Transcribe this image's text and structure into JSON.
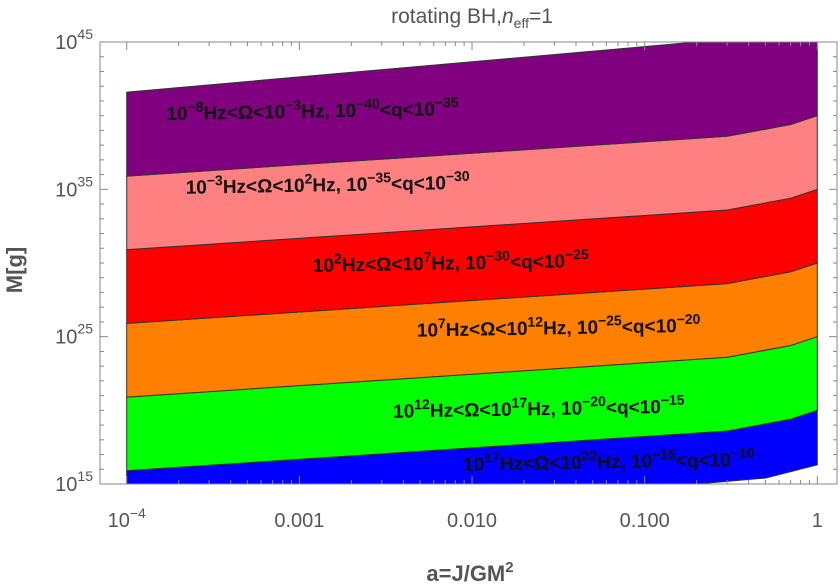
{
  "chart_data": {
    "type": "area",
    "title": {
      "main": "rotating BH,",
      "var": "n",
      "sub": "eff",
      "rest": "=1"
    },
    "xlabel": {
      "main": "a=J/GM",
      "sup": "2"
    },
    "ylabel": "M[g]",
    "x_scale": "log",
    "y_scale": "log",
    "xlim": [
      7e-05,
      1.3
    ],
    "ylim": [
      1000000000000000.0,
      1e+45
    ],
    "x_ticks": [
      {
        "value": 0.0001,
        "base": "10",
        "sup": "−4"
      },
      {
        "value": 0.001,
        "label": "0.001"
      },
      {
        "value": 0.01,
        "label": "0.010"
      },
      {
        "value": 0.1,
        "label": "0.100"
      },
      {
        "value": 1,
        "label": "1"
      }
    ],
    "y_ticks": [
      {
        "value": 1000000000000000.0,
        "base": "10",
        "sup": "15"
      },
      {
        "value": 1e+25,
        "base": "10",
        "sup": "25"
      },
      {
        "value": 1e+35,
        "base": "10",
        "sup": "35"
      },
      {
        "value": 1e+45,
        "base": "10",
        "sup": "45"
      }
    ],
    "series": [
      {
        "name": "10^17Hz<Ω<10^22Hz, 10^-15<q<10^-10",
        "color": "#0000ff",
        "lower_log10": [
          [
            0.0001,
            15.0
          ],
          [
            0.2,
            15.0
          ],
          [
            0.5,
            15.4
          ],
          [
            1.0,
            16.3
          ]
        ],
        "upper_log10": [
          [
            0.0001,
            15.9
          ],
          [
            0.3,
            18.6
          ],
          [
            0.7,
            19.4
          ],
          [
            1.0,
            20.0
          ]
        ]
      },
      {
        "name": "10^12Hz<Ω<10^17Hz, 10^-20<q<10^-15",
        "color": "#00ff00",
        "lower_log10": [
          [
            0.0001,
            15.9
          ],
          [
            0.3,
            18.6
          ],
          [
            0.7,
            19.4
          ],
          [
            1.0,
            20.0
          ]
        ],
        "upper_log10": [
          [
            0.0001,
            20.9
          ],
          [
            0.3,
            23.6
          ],
          [
            0.7,
            24.4
          ],
          [
            1.0,
            25.0
          ]
        ]
      },
      {
        "name": "10^7Hz<Ω<10^12Hz, 10^-25<q<10^-20",
        "color": "#ff7f00",
        "lower_log10": [
          [
            0.0001,
            20.9
          ],
          [
            0.3,
            23.6
          ],
          [
            0.7,
            24.4
          ],
          [
            1.0,
            25.0
          ]
        ],
        "upper_log10": [
          [
            0.0001,
            25.9
          ],
          [
            0.3,
            28.6
          ],
          [
            0.7,
            29.4
          ],
          [
            1.0,
            30.0
          ]
        ]
      },
      {
        "name": "10^2Hz<Ω<10^7Hz, 10^-30<q<10^-25",
        "color": "#ff0000",
        "lower_log10": [
          [
            0.0001,
            25.9
          ],
          [
            0.3,
            28.6
          ],
          [
            0.7,
            29.4
          ],
          [
            1.0,
            30.0
          ]
        ],
        "upper_log10": [
          [
            0.0001,
            30.9
          ],
          [
            0.3,
            33.6
          ],
          [
            0.7,
            34.4
          ],
          [
            1.0,
            35.0
          ]
        ]
      },
      {
        "name": "10^-3Hz<Ω<10^2Hz, 10^-35<q<10^-30",
        "color": "#ff8080",
        "lower_log10": [
          [
            0.0001,
            30.9
          ],
          [
            0.3,
            33.6
          ],
          [
            0.7,
            34.4
          ],
          [
            1.0,
            35.0
          ]
        ],
        "upper_log10": [
          [
            0.0001,
            35.9
          ],
          [
            0.3,
            38.6
          ],
          [
            0.7,
            39.4
          ],
          [
            1.0,
            40.0
          ]
        ]
      },
      {
        "name": "10^-8Hz<Ω<10^-3Hz, 10^-40<q<10^-35",
        "color": "#800080",
        "lower_log10": [
          [
            0.0001,
            35.9
          ],
          [
            0.3,
            38.6
          ],
          [
            0.7,
            39.4
          ],
          [
            1.0,
            40.0
          ]
        ],
        "upper_log10": [
          [
            0.0001,
            41.6
          ],
          [
            0.2,
            45.0
          ],
          [
            1.0,
            45.0
          ]
        ]
      }
    ],
    "band_labels": [
      {
        "series": 0,
        "at": [
          0.0089,
          15.9
        ],
        "parts": [
          [
            "10",
            ""
          ],
          [
            "17",
            "sup"
          ],
          [
            "Hz<Ω<10",
            ""
          ],
          [
            "22",
            "sup"
          ],
          [
            "Hz, 10",
            ""
          ],
          [
            "−15",
            "sup"
          ],
          [
            "<q<10",
            ""
          ],
          [
            "−10",
            "sup"
          ]
        ]
      },
      {
        "series": 1,
        "at": [
          0.0035,
          19.5
        ],
        "parts": [
          [
            "10",
            ""
          ],
          [
            "12",
            "sup"
          ],
          [
            "Hz<Ω<10",
            ""
          ],
          [
            "17",
            "sup"
          ],
          [
            "Hz, 10",
            ""
          ],
          [
            "−20",
            "sup"
          ],
          [
            "<q<10",
            ""
          ],
          [
            "−15",
            "sup"
          ]
        ]
      },
      {
        "series": 2,
        "at": [
          0.0048,
          25.0
        ],
        "parts": [
          [
            "10",
            ""
          ],
          [
            "7",
            "sup"
          ],
          [
            "Hz<Ω<10",
            ""
          ],
          [
            "12",
            "sup"
          ],
          [
            "Hz, 10",
            ""
          ],
          [
            "−25",
            "sup"
          ],
          [
            "<q<10",
            ""
          ],
          [
            "−20",
            "sup"
          ]
        ]
      },
      {
        "series": 3,
        "at": [
          0.0012,
          29.4
        ],
        "parts": [
          [
            "10",
            ""
          ],
          [
            "2",
            "sup"
          ],
          [
            "Hz<Ω<10",
            ""
          ],
          [
            "7",
            "sup"
          ],
          [
            "Hz, 10",
            ""
          ],
          [
            "−30",
            "sup"
          ],
          [
            "<q<10",
            ""
          ],
          [
            "−25",
            "sup"
          ]
        ]
      },
      {
        "series": 4,
        "at": [
          0.00022,
          34.7
        ],
        "parts": [
          [
            "10",
            ""
          ],
          [
            "−3",
            "sup"
          ],
          [
            "Hz<Ω<10",
            ""
          ],
          [
            "2",
            "sup"
          ],
          [
            "Hz, 10",
            ""
          ],
          [
            "−35",
            "sup"
          ],
          [
            "<q<10",
            ""
          ],
          [
            "−30",
            "sup"
          ]
        ]
      },
      {
        "series": 5,
        "at": [
          0.00017,
          39.7
        ],
        "parts": [
          [
            "10",
            ""
          ],
          [
            "−8",
            "sup"
          ],
          [
            "Hz<Ω<10",
            ""
          ],
          [
            "−3",
            "sup"
          ],
          [
            "Hz, 10",
            ""
          ],
          [
            "−40",
            "sup"
          ],
          [
            "<q<10",
            ""
          ],
          [
            "−35",
            "sup"
          ]
        ]
      }
    ]
  }
}
